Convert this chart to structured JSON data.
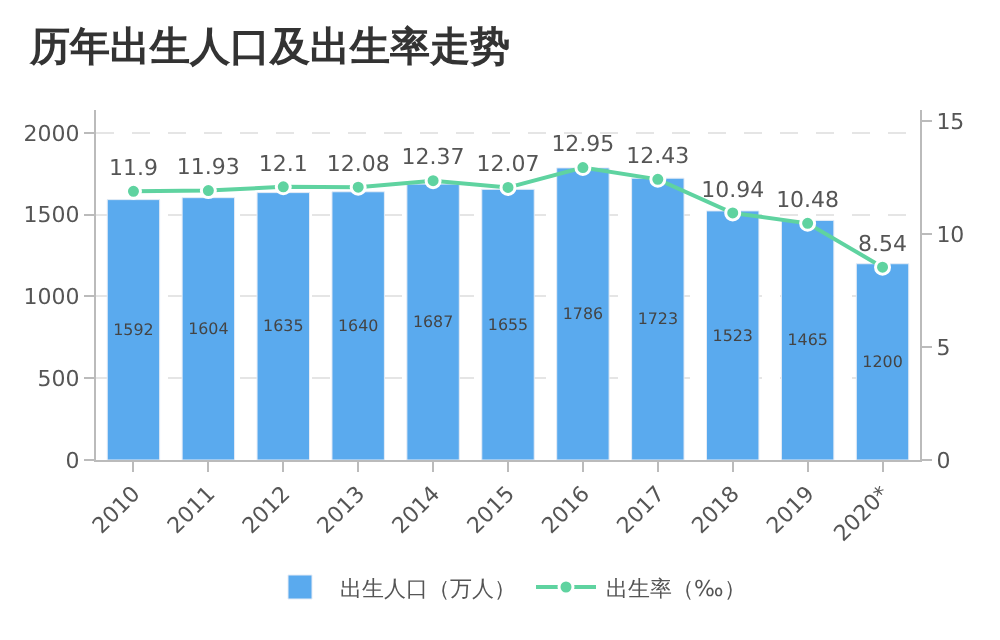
{
  "chart_data": {
    "type": "bar",
    "title": "历年出生人口及出生率走势",
    "categories": [
      "2010",
      "2011",
      "2012",
      "2013",
      "2014",
      "2015",
      "2016",
      "2017",
      "2018",
      "2019",
      "2020*"
    ],
    "series": [
      {
        "name": "出生人口（万人）",
        "color": "#5aaaee",
        "values": [
          1592,
          1604,
          1635,
          1640,
          1687,
          1655,
          1786,
          1723,
          1523,
          1465,
          1200
        ]
      },
      {
        "name": "出生率（‰）",
        "type": "line",
        "axis": "y2",
        "color": "#5fd3a0",
        "marker": "circle",
        "values": [
          11.9,
          11.93,
          12.1,
          12.08,
          12.37,
          12.07,
          12.95,
          12.43,
          10.94,
          10.48,
          8.54
        ]
      }
    ],
    "ylim": [
      0,
      2140
    ],
    "yticks": [
      0,
      500,
      1000,
      1500,
      2000
    ],
    "y2lim": [
      0,
      15.5
    ],
    "y2ticks": [
      0,
      5,
      10,
      15
    ],
    "grid": "y",
    "legend": "bottom",
    "data_labels": true
  }
}
